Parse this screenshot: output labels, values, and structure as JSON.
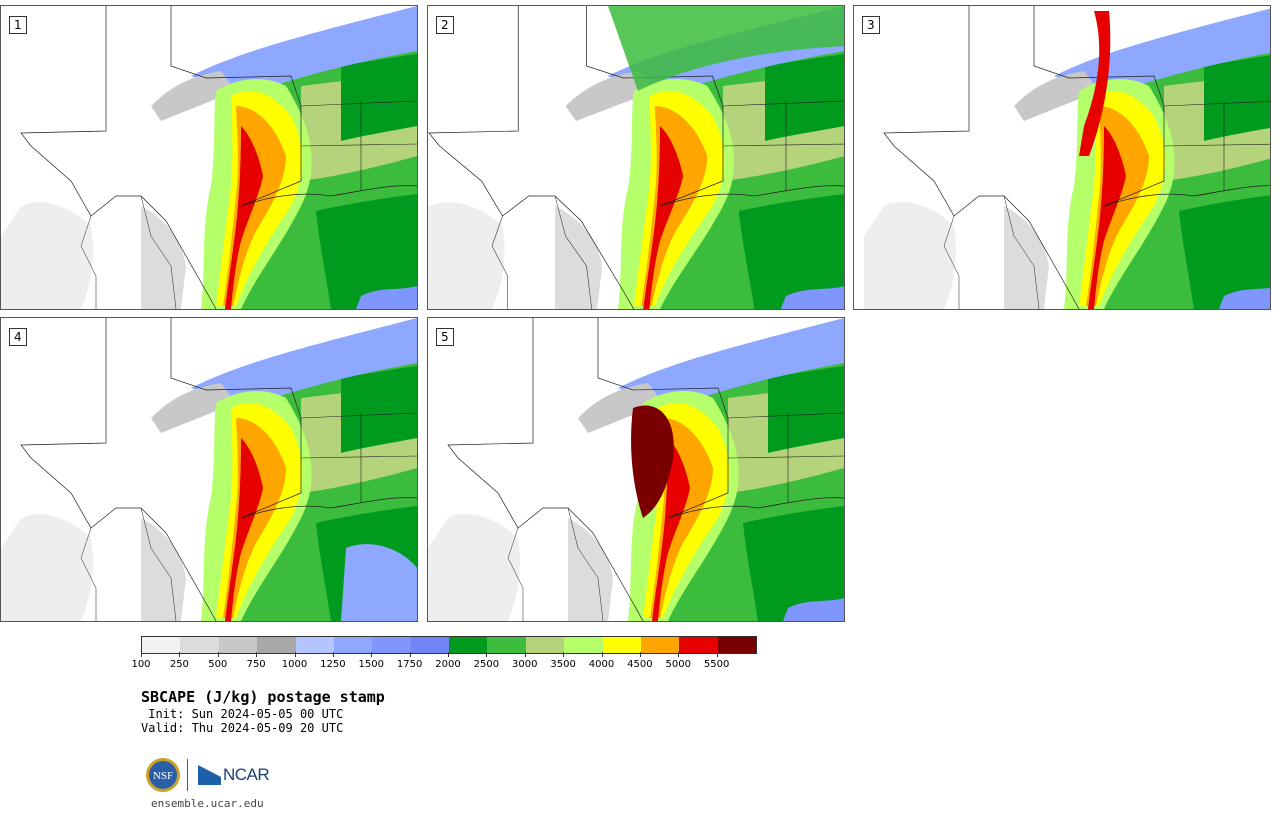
{
  "title": "SBCAPE (J/kg) postage stamp",
  "init": " Init: Sun 2024-05-05 00 UTC",
  "valid": "Valid: Thu 2024-05-09 20 UTC",
  "site": "ensemble.ucar.edu",
  "logos": {
    "nsf_text": "NSF",
    "ncar_text": "NCAR"
  },
  "panels": [
    {
      "label": "1"
    },
    {
      "label": "2"
    },
    {
      "label": "3"
    },
    {
      "label": "4"
    },
    {
      "label": "5"
    }
  ],
  "colorbar": {
    "colors": [
      "#f2f2f2",
      "#dcdcdc",
      "#c8c8c8",
      "#a8a8a8",
      "#b4c4ff",
      "#8ea8ff",
      "#7f96ff",
      "#6f84f5",
      "#009a1f",
      "#3cbc3c",
      "#b5d37a",
      "#b5ff6a",
      "#ffff00",
      "#ffa500",
      "#e60000",
      "#7a0000"
    ],
    "ticks": [
      "100",
      "250",
      "500",
      "750",
      "1000",
      "1250",
      "1500",
      "1750",
      "2000",
      "2500",
      "3000",
      "3500",
      "4000",
      "4500",
      "5000",
      "5500"
    ]
  }
}
